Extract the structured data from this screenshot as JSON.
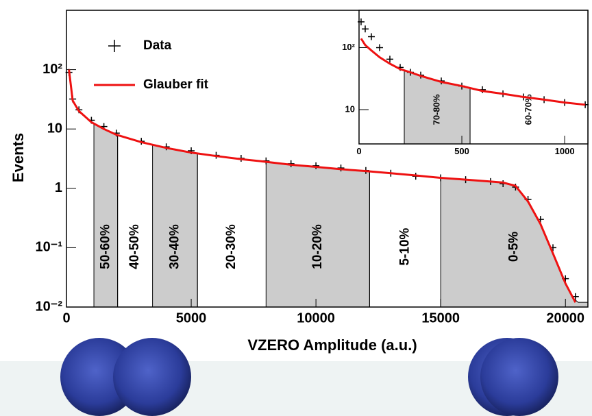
{
  "chart_data": [
    {
      "type": "line",
      "x_label": "VZERO Amplitude (a.u.)",
      "y_label": "Events",
      "log_y": true,
      "legend": "upper left",
      "xlim": [
        0,
        20900
      ],
      "ylim": [
        0.01,
        1000
      ],
      "xticks": [
        0,
        5000,
        10000,
        15000,
        20000
      ],
      "yticks": [
        {
          "value": 0.01,
          "label": "10⁻²"
        },
        {
          "value": 0.1,
          "label": "10⁻¹"
        },
        1,
        10,
        {
          "value": 100,
          "label": "10²"
        }
      ],
      "x": [
        100,
        250,
        500,
        1000,
        1500,
        2000,
        3000,
        4000,
        5000,
        6000,
        7000,
        8000,
        9000,
        10000,
        11000,
        12000,
        13000,
        14000,
        15000,
        16000,
        17000,
        17500,
        18000,
        18500,
        19000,
        19500,
        20000,
        20400
      ],
      "series": [
        {
          "name": "Data",
          "color": "#000000",
          "marker": "+",
          "values": [
            90,
            32,
            21,
            14,
            11,
            8.5,
            6.2,
            5,
            4.3,
            3.6,
            3.2,
            2.9,
            2.6,
            2.4,
            2.2,
            2,
            1.8,
            1.6,
            1.5,
            1.4,
            1.3,
            1.2,
            1.05,
            0.65,
            0.3,
            0.1,
            0.03,
            0.015
          ]
        },
        {
          "name": "Glauber fit",
          "color": "#ee1111",
          "marker": "line",
          "values": [
            100,
            30,
            20,
            13,
            10,
            8,
            6,
            4.8,
            4,
            3.5,
            3.1,
            2.8,
            2.5,
            2.3,
            2.1,
            1.95,
            1.8,
            1.65,
            1.5,
            1.4,
            1.3,
            1.25,
            1.1,
            0.6,
            0.25,
            0.08,
            0.025,
            0.012
          ]
        }
      ],
      "bands": [
        {
          "label": "50-60%",
          "range": [
            1100,
            2050
          ],
          "shaded": true
        },
        {
          "label": "40-50%",
          "range": [
            2050,
            3450
          ],
          "shaded": false
        },
        {
          "label": "30-40%",
          "range": [
            3450,
            5250
          ],
          "shaded": true
        },
        {
          "label": "20-30%",
          "range": [
            5250,
            8000
          ],
          "shaded": false
        },
        {
          "label": "10-20%",
          "range": [
            8000,
            12150
          ],
          "shaded": true
        },
        {
          "label": "5-10%",
          "range": [
            12150,
            15000
          ],
          "shaded": false
        },
        {
          "label": "0-5%",
          "range": [
            15000,
            20900
          ],
          "shaded": true
        }
      ]
    },
    {
      "type": "line",
      "log_y": true,
      "xlim": [
        0,
        1113
      ],
      "ylim": [
        2.8,
        400
      ],
      "xticks": [
        0,
        500,
        1000
      ],
      "yticks": [
        10,
        {
          "value": 100,
          "label": "10²"
        }
      ],
      "x": [
        10,
        30,
        60,
        100,
        150,
        200,
        250,
        300,
        400,
        500,
        600,
        700,
        800,
        900,
        1000,
        1100
      ],
      "series": [
        {
          "name": "Data",
          "color": "#000000",
          "marker": "+",
          "values": [
            260,
            200,
            150,
            100,
            65,
            48,
            40,
            36,
            29,
            24,
            21,
            18,
            16,
            14.5,
            13,
            12
          ]
        },
        {
          "name": "Glauber fit",
          "color": "#ee1111",
          "marker": "line",
          "values": [
            140,
            110,
            90,
            70,
            55,
            45,
            40,
            35,
            28,
            24,
            20,
            18,
            16,
            14.5,
            13,
            12
          ]
        }
      ],
      "bands": [
        {
          "label": "70-80%",
          "range": [
            220,
            540
          ],
          "shaded": true
        },
        {
          "label": "60-70%",
          "range": [
            540,
            1113
          ],
          "shaded": false
        }
      ]
    }
  ]
}
